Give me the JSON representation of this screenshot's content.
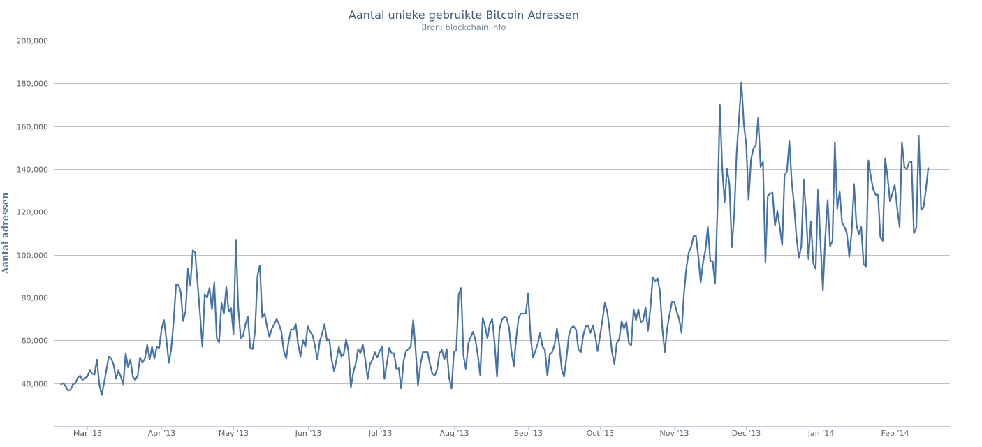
{
  "chart_data": {
    "type": "line",
    "title": "Aantal unieke gebruikte Bitcoin Adressen",
    "subtitle": "Bron: blockchain.info",
    "xlabel": "",
    "ylabel": "Aantal adressen",
    "ylim": [
      20000,
      200000
    ],
    "yticks": [
      40000,
      60000,
      80000,
      100000,
      120000,
      140000,
      160000,
      180000,
      200000
    ],
    "ytick_labels": [
      "40,000",
      "60,000",
      "80,000",
      "100,000",
      "120,000",
      "140,000",
      "160,000",
      "180,000",
      "200,000"
    ],
    "grid": true,
    "line_color": "#4572a7",
    "x_start": "2013-02-15",
    "x_end": "2014-02-24",
    "x_ticks": [
      {
        "date": "2013-03-01",
        "label": "Mar '13"
      },
      {
        "date": "2013-04-01",
        "label": "Apr '13"
      },
      {
        "date": "2013-05-01",
        "label": "May '13"
      },
      {
        "date": "2013-06-01",
        "label": "Jun '13"
      },
      {
        "date": "2013-07-01",
        "label": "Jul '13"
      },
      {
        "date": "2013-08-01",
        "label": "Aug '13"
      },
      {
        "date": "2013-09-01",
        "label": "Sep '13"
      },
      {
        "date": "2013-10-01",
        "label": "Oct '13"
      },
      {
        "date": "2013-11-01",
        "label": "Nov '13"
      },
      {
        "date": "2013-12-01",
        "label": "Dec '13"
      },
      {
        "date": "2014-01-01",
        "label": "Jan '14"
      },
      {
        "date": "2014-02-01",
        "label": "Feb '14"
      }
    ],
    "series": [
      {
        "name": "Aantal unieke gebruikte Bitcoin Adressen",
        "start_date": "2013-02-18",
        "points_per_day": 1,
        "values": [
          39500,
          40000,
          38500,
          36500,
          37000,
          39500,
          40000,
          42500,
          43500,
          41500,
          42500,
          43000,
          46000,
          44500,
          44000,
          51000,
          39500,
          34500,
          40000,
          46500,
          52500,
          51500,
          48500,
          42000,
          46000,
          43000,
          39500,
          54000,
          47500,
          51000,
          43000,
          41500,
          43500,
          52000,
          49500,
          51500,
          58000,
          51000,
          57000,
          51500,
          57000,
          56500,
          65500,
          69500,
          60500,
          49500,
          56000,
          68500,
          86000,
          86000,
          82500,
          69000,
          73500,
          93500,
          85500,
          102000,
          101000,
          87000,
          72500,
          57000,
          81500,
          80000,
          84500,
          74500,
          87000,
          61000,
          59000,
          77500,
          72500,
          85000,
          73500,
          75000,
          63000,
          107000,
          75500,
          61000,
          62000,
          67500,
          71000,
          56500,
          56000,
          64500,
          90000,
          95000,
          70500,
          72500,
          66500,
          61500,
          65500,
          67500,
          70000,
          67500,
          64000,
          55000,
          51500,
          59500,
          65000,
          65000,
          67500,
          58000,
          52500,
          60000,
          57000,
          66500,
          64000,
          62500,
          57500,
          51000,
          59500,
          63000,
          67500,
          60000,
          60500,
          51000,
          45500,
          51000,
          57000,
          52500,
          53500,
          60500,
          55000,
          38000,
          45000,
          49000,
          56000,
          54000,
          58000,
          51000,
          42000,
          49000,
          51000,
          54500,
          52000,
          55000,
          57000,
          42000,
          49000,
          56500,
          54000,
          54000,
          46500,
          47000,
          37500,
          50500,
          55000,
          56000,
          57000,
          69500,
          56000,
          39000,
          48500,
          54500,
          54500,
          54500,
          49000,
          44500,
          43500,
          46500,
          54000,
          55500,
          51000,
          56000,
          42500,
          37500,
          54500,
          55500,
          81500,
          84500,
          53000,
          46500,
          58500,
          61500,
          64000,
          60000,
          53000,
          43500,
          70500,
          66500,
          61000,
          67500,
          70000,
          58500,
          43000,
          65000,
          69500,
          71000,
          70500,
          66000,
          55000,
          48000,
          61000,
          70500,
          72500,
          72500,
          72500,
          82000,
          61500,
          52000,
          55000,
          58500,
          63500,
          57000,
          55500,
          43500,
          53500,
          54500,
          58000,
          65500,
          58000,
          46500,
          43000,
          52000,
          62500,
          66000,
          66500,
          65000,
          55500,
          54500,
          62500,
          66500,
          67000,
          63500,
          67000,
          62000,
          55000,
          62000,
          69500,
          77500,
          73500,
          64500,
          54500,
          49000,
          59000,
          60500,
          69000,
          65500,
          68500,
          59000,
          57500,
          74500,
          69500,
          74500,
          68500,
          69500,
          75500,
          64500,
          75000,
          89500,
          87500,
          89000,
          83000,
          65500,
          54500,
          65500,
          72000,
          78000,
          78000,
          73500,
          70000,
          63500,
          81500,
          93500,
          101000,
          103500,
          108500,
          109000,
          99500,
          87000,
          96500,
          102500,
          113000,
          97000,
          97000,
          86500,
          120000,
          170000,
          140000,
          124500,
          140000,
          133000,
          103500,
          119000,
          147500,
          163500,
          180500,
          161000,
          151500,
          125500,
          144500,
          149500,
          151000,
          164000,
          141000,
          143500,
          96500,
          127500,
          128500,
          129000,
          113500,
          120500,
          113000,
          104500,
          137000,
          139000,
          153000,
          134000,
          123000,
          108000,
          98500,
          104000,
          135000,
          119000,
          98000,
          115500,
          96000,
          93500,
          130500,
          105000,
          83500,
          108000,
          125500,
          104000,
          106500,
          152500,
          121500,
          129500,
          115000,
          113000,
          110000,
          99000,
          110500,
          133000,
          114000,
          109500,
          113000,
          95500,
          94500,
          144000,
          136500,
          130500,
          128000,
          128000,
          108000,
          106500,
          145000,
          136500,
          125000,
          128500,
          132500,
          122000,
          113000,
          152500,
          141000,
          140000,
          143000,
          143500,
          110000,
          112500,
          155500,
          121000,
          122000,
          130500,
          140500
        ]
      }
    ]
  }
}
